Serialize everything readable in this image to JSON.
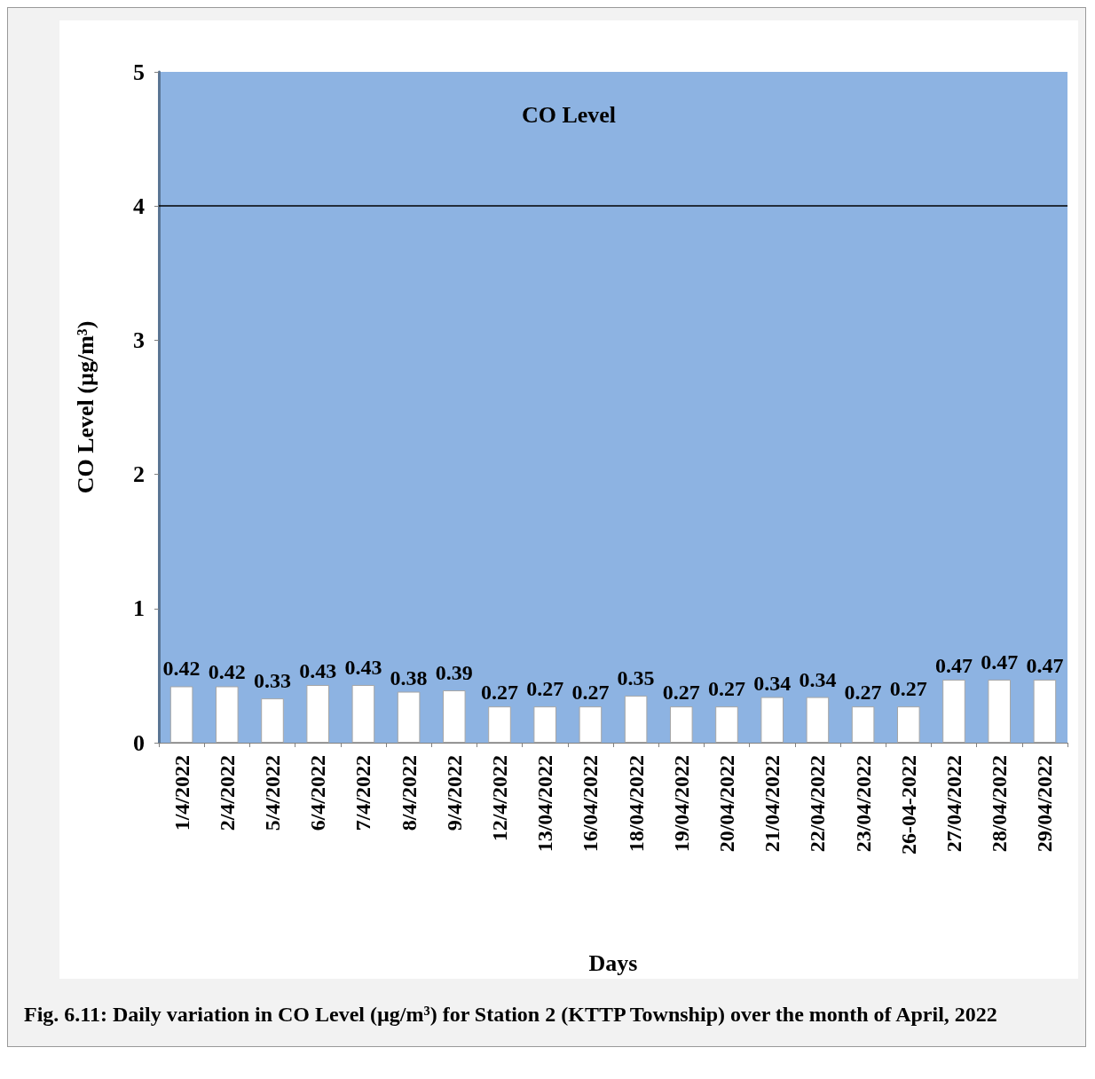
{
  "chart_data": {
    "type": "bar",
    "title": "CO Level",
    "xlabel": "Days",
    "ylabel": "CO Level (µg/m³)",
    "annotations": [
      "Fig. 6.11: Daily variation in CO Level (µg/m³) for Station 2 (KTTP Township) over the month of April, 2022"
    ],
    "categories": [
      "1/4/2022",
      "2/4/2022",
      "5/4/2022",
      "6/4/2022",
      "7/4/2022",
      "8/4/2022",
      "9/4/2022",
      "12/4/2022",
      "13/04/2022",
      "16/04/2022",
      "18/04/2022",
      "19/04/2022",
      "20/04/2022",
      "21/04/2022",
      "22/04/2022",
      "23/04/2022",
      "26-04-2022",
      "27/04/2022",
      "28/04/2022",
      "29/04/2022"
    ],
    "values": [
      0.42,
      0.42,
      0.33,
      0.43,
      0.43,
      0.38,
      0.39,
      0.27,
      0.27,
      0.27,
      0.35,
      0.27,
      0.27,
      0.34,
      0.34,
      0.27,
      0.27,
      0.47,
      0.47,
      0.47
    ],
    "color": "#ffffff",
    "ylim": [
      0,
      5
    ],
    "yticks": [
      0,
      1,
      2,
      3,
      4,
      5
    ],
    "ref_lines": [
      {
        "axis": "y",
        "value": 4,
        "label": null,
        "color": "#000000"
      }
    ],
    "data_labels": true,
    "grid": false
  }
}
